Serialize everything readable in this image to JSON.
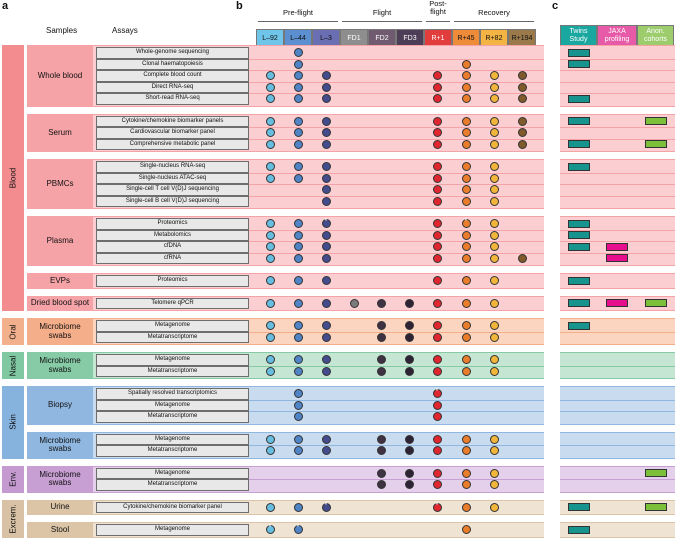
{
  "panels": {
    "a": "a",
    "b": "b",
    "c": "c"
  },
  "headers": {
    "samples": "Samples",
    "assays": "Assays"
  },
  "groups": {
    "preflight": "Pre-flight",
    "flight": "Flight",
    "postflight": "Post-\nflight",
    "recovery": "Recovery"
  },
  "timepoints": [
    {
      "label": "L–92",
      "color": "#6fc4ea"
    },
    {
      "label": "L–44",
      "color": "#5b8fcf"
    },
    {
      "label": "L–3",
      "color": "#6a6fb4"
    },
    {
      "label": "FD1",
      "color": "#8e8e8e"
    },
    {
      "label": "FD2",
      "color": "#6f5a70"
    },
    {
      "label": "FD3",
      "color": "#4d3d57"
    },
    {
      "label": "R+1",
      "color": "#e23d3d"
    },
    {
      "label": "R+45",
      "color": "#ef8c3a"
    },
    {
      "label": "R+82",
      "color": "#f3b443"
    },
    {
      "label": "R+194",
      "color": "#9a7a4a"
    }
  ],
  "dot_colors": [
    "#67bde0",
    "#4f84c6",
    "#444c8e",
    "#7b7b7b",
    "#3f3242",
    "#2e2335",
    "#e0262f",
    "#ea7d2c",
    "#f0b53a",
    "#7f5a2a"
  ],
  "studies": [
    {
      "label": "Twins\nStudy",
      "color": "#1aa7a0",
      "pill": "#16948d"
    },
    {
      "label": "JAXA\nprofiling",
      "color": "#e75aa7",
      "pill": "#e60e8c"
    },
    {
      "label": "Anon.\ncohorts",
      "color": "#9ccc6c",
      "pill": "#7cc03a"
    }
  ],
  "categories": [
    {
      "label": "Blood",
      "color": "#f28c8f"
    },
    {
      "label": "Oral",
      "color": "#f2b08c"
    },
    {
      "label": "Nasal",
      "color": "#7fc8a2"
    },
    {
      "label": "Skin",
      "color": "#86b2de"
    },
    {
      "label": "Env.",
      "color": "#c49ad0"
    },
    {
      "label": "Excrem.",
      "color": "#d8c1a4"
    }
  ],
  "sections": [
    {
      "sample": "Whole blood",
      "cat": 0,
      "fill": "#f6a3a7",
      "light": "#fbcfd1",
      "assays": [
        {
          "name": "Whole-genome sequencing",
          "dots": [
            1
          ],
          "stars": [],
          "studies": [
            0
          ]
        },
        {
          "name": "Clonal haematopoiesis",
          "dots": [
            1,
            7
          ],
          "stars": [],
          "studies": [
            0
          ]
        },
        {
          "name": "Complete blood count",
          "dots": [
            0,
            1,
            2,
            6,
            7,
            8,
            9
          ],
          "stars": [],
          "studies": []
        },
        {
          "name": "Direct RNA-seq",
          "dots": [
            0,
            1,
            2,
            6,
            7,
            8,
            9
          ],
          "stars": [],
          "studies": []
        },
        {
          "name": "Short-read RNA-seq",
          "dots": [
            0,
            1,
            2,
            6,
            7,
            8,
            9
          ],
          "stars": [],
          "studies": [
            0
          ]
        }
      ]
    },
    {
      "sample": "Serum",
      "cat": 0,
      "fill": "#f6a3a7",
      "light": "#fbcfd1",
      "assays": [
        {
          "name": "Cytokine/chemokine biomarker panels",
          "dots": [
            0,
            1,
            2,
            6,
            7,
            8,
            9
          ],
          "stars": [],
          "studies": [
            0,
            2
          ]
        },
        {
          "name": "Cardiovascular biomarker panel",
          "dots": [
            0,
            1,
            2,
            6,
            7,
            8,
            9
          ],
          "stars": [],
          "studies": []
        },
        {
          "name": "Comprehensive metabolic panel",
          "dots": [
            0,
            1,
            2,
            6,
            7,
            8,
            9
          ],
          "stars": [],
          "studies": [
            0,
            2
          ]
        }
      ]
    },
    {
      "sample": "PBMCs",
      "cat": 0,
      "fill": "#f6a3a7",
      "light": "#fbcfd1",
      "assays": [
        {
          "name": "Single-nucleus RNA-seq",
          "dots": [
            0,
            1,
            2,
            6,
            7,
            8
          ],
          "stars": [],
          "studies": [
            0
          ]
        },
        {
          "name": "Single-nucleus ATAC-seq",
          "dots": [
            0,
            1,
            2,
            6,
            7,
            8
          ],
          "stars": [],
          "studies": []
        },
        {
          "name": "Single-cell T cell V(D)J sequencing",
          "dots": [
            2,
            6,
            7,
            8
          ],
          "stars": [],
          "studies": []
        },
        {
          "name": "Single-cell B cell V(D)J sequencing",
          "dots": [
            2,
            6,
            7,
            8
          ],
          "stars": [],
          "studies": []
        }
      ]
    },
    {
      "sample": "Plasma",
      "cat": 0,
      "fill": "#f6a3a7",
      "light": "#fbcfd1",
      "assays": [
        {
          "name": "Proteomics",
          "dots": [
            0,
            1,
            2,
            6,
            7,
            8
          ],
          "stars": [
            2,
            7
          ],
          "studies": [
            0
          ]
        },
        {
          "name": "Metabolomics",
          "dots": [
            0,
            1,
            2,
            6,
            7,
            8
          ],
          "stars": [],
          "studies": [
            0
          ]
        },
        {
          "name": "cfDNA",
          "dots": [
            0,
            1,
            2,
            6,
            7,
            8
          ],
          "stars": [],
          "studies": [
            0,
            1
          ]
        },
        {
          "name": "cfRNA",
          "dots": [
            0,
            1,
            2,
            6,
            7,
            8,
            9
          ],
          "stars": [],
          "studies": [
            1
          ]
        }
      ]
    },
    {
      "sample": "EVPs",
      "cat": 0,
      "fill": "#f6a3a7",
      "light": "#fbcfd1",
      "assays": [
        {
          "name": "Proteomics",
          "dots": [
            0,
            1,
            2,
            6,
            7,
            8
          ],
          "stars": [],
          "studies": [
            0
          ]
        }
      ]
    },
    {
      "sample": "Dried blood spot",
      "cat": 0,
      "fill": "#f6a3a7",
      "light": "#fbcfd1",
      "assays": [
        {
          "name": "Telomere qPCR",
          "dots": [
            0,
            1,
            2,
            3,
            4,
            5,
            6,
            7,
            8
          ],
          "stars": [],
          "studies": [
            0,
            1,
            2
          ]
        }
      ]
    },
    {
      "sample": "Microbiome\nswabs",
      "cat": 1,
      "fill": "#f5ae8a",
      "light": "#fbd5c0",
      "assays": [
        {
          "name": "Metagenome",
          "dots": [
            0,
            1,
            2,
            4,
            5,
            6,
            7,
            8
          ],
          "stars": [],
          "studies": [
            0
          ]
        },
        {
          "name": "Metatranscriptome",
          "dots": [
            0,
            1,
            2,
            4,
            5,
            6,
            7,
            8
          ],
          "stars": [],
          "studies": []
        }
      ]
    },
    {
      "sample": "Microbiome\nswabs",
      "cat": 2,
      "fill": "#86caa6",
      "light": "#c5e6d2",
      "assays": [
        {
          "name": "Metagenome",
          "dots": [
            0,
            1,
            2,
            4,
            5,
            6,
            7,
            8
          ],
          "stars": [],
          "studies": []
        },
        {
          "name": "Metatranscriptome",
          "dots": [
            0,
            1,
            2,
            4,
            5,
            6,
            7,
            8
          ],
          "stars": [],
          "studies": []
        }
      ]
    },
    {
      "sample": "Biopsy",
      "cat": 3,
      "fill": "#8fb7e0",
      "light": "#c9dbef",
      "assays": [
        {
          "name": "Spatially resolved transcriptomics",
          "dots": [
            1,
            6
          ],
          "stars": [
            6
          ],
          "studies": []
        },
        {
          "name": "Metagenome",
          "dots": [
            1,
            6
          ],
          "stars": [],
          "studies": []
        },
        {
          "name": "Metatranscriptome",
          "dots": [
            1,
            6
          ],
          "stars": [],
          "studies": []
        }
      ]
    },
    {
      "sample": "Microbiome\nswabs",
      "cat": 3,
      "fill": "#8fb7e0",
      "light": "#c9dbef",
      "assays": [
        {
          "name": "Metagenome",
          "dots": [
            0,
            1,
            2,
            4,
            5,
            6,
            7,
            8
          ],
          "stars": [],
          "studies": []
        },
        {
          "name": "Metatranscriptome",
          "dots": [
            0,
            1,
            2,
            4,
            5,
            6,
            7,
            8
          ],
          "stars": [],
          "studies": []
        }
      ]
    },
    {
      "sample": "Microbiome\nswabs",
      "cat": 4,
      "fill": "#c89fd3",
      "light": "#e4d0ea",
      "assays": [
        {
          "name": "Metagenome",
          "dots": [
            4,
            5,
            6,
            7,
            8
          ],
          "stars": [],
          "studies": [
            2
          ]
        },
        {
          "name": "Metatranscriptome",
          "dots": [
            4,
            5,
            6,
            7,
            8
          ],
          "stars": [],
          "studies": []
        }
      ]
    },
    {
      "sample": "Urine",
      "cat": 5,
      "fill": "#dcc5a7",
      "light": "#efe3d3",
      "assays": [
        {
          "name": "Cytokine/chemokine biomarker panel",
          "dots": [
            0,
            1,
            2,
            6,
            7,
            8
          ],
          "stars": [
            2,
            6
          ],
          "studies": [
            0,
            2
          ]
        }
      ]
    },
    {
      "sample": "Stool",
      "cat": 5,
      "fill": "#dcc5a7",
      "light": "#efe3d3",
      "assays": [
        {
          "name": "Metagenome",
          "dots": [
            0,
            1,
            7
          ],
          "stars": [
            0,
            1
          ],
          "studies": [
            0
          ]
        }
      ]
    }
  ]
}
